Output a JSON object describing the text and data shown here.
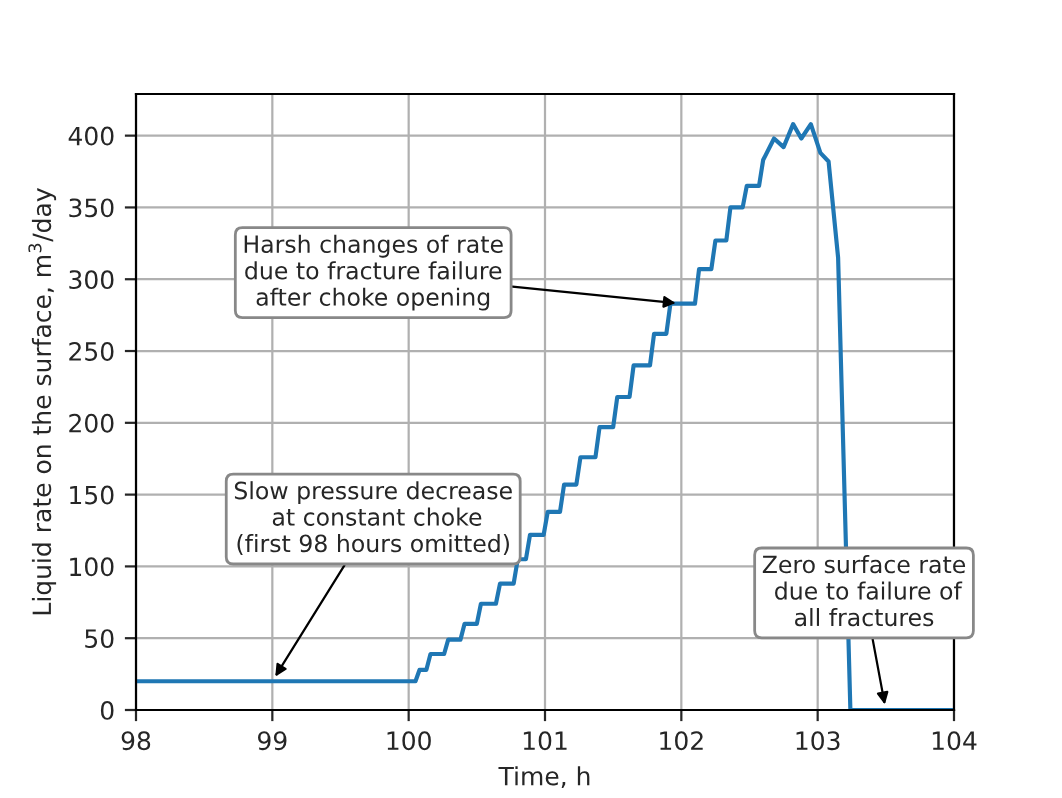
{
  "chart_data": {
    "type": "line",
    "xlabel": "Time, h",
    "ylabel": "Liquid rate on the surface, m$^{3}$/day",
    "x": [
      98,
      100.05,
      100.08,
      100.13,
      100.16,
      100.26,
      100.29,
      100.38,
      100.41,
      100.5,
      100.53,
      100.64,
      100.67,
      100.77,
      100.8,
      100.86,
      100.89,
      100.99,
      101.02,
      101.11,
      101.14,
      101.23,
      101.26,
      101.37,
      101.4,
      101.5,
      101.53,
      101.62,
      101.65,
      101.77,
      101.8,
      101.89,
      101.92,
      102.1,
      102.13,
      102.22,
      102.25,
      102.33,
      102.36,
      102.45,
      102.48,
      102.57,
      102.6,
      102.68,
      102.75,
      102.82,
      102.88,
      102.95,
      103.02,
      103.08,
      103.15,
      103.24,
      104
    ],
    "series": [
      {
        "color": "#1f77b4",
        "values": [
          20,
          20,
          28,
          28,
          39,
          39,
          49,
          49,
          60,
          60,
          74,
          74,
          88,
          88,
          105,
          105,
          122,
          122,
          138,
          138,
          157,
          157,
          176,
          176,
          197,
          197,
          218,
          218,
          240,
          240,
          262,
          262,
          283,
          283,
          307,
          307,
          327,
          327,
          350,
          350,
          365,
          365,
          383,
          398,
          392,
          408,
          398,
          408,
          388,
          382,
          315,
          0,
          0
        ]
      }
    ],
    "xlim": [
      98,
      104
    ],
    "xticks": [
      98,
      99,
      100,
      101,
      102,
      103,
      104
    ],
    "ylim": [
      0,
      429
    ],
    "yticks": [
      0,
      50,
      100,
      150,
      200,
      250,
      300,
      350,
      400
    ],
    "grid": true,
    "marker": "none",
    "line_style": "solid",
    "annotations": [
      {
        "text": "Harsh changes of rate\ndue to fracture failure\nafter choke opening",
        "x": 102,
        "y": 283
      },
      {
        "text": "Slow pressure decrease\n at constant choke\n(first 98 hours omitted)",
        "x": 99,
        "y": 20
      },
      {
        "text": "Zero surface rate\n due to failure of\nall fractures",
        "x": 103.5,
        "y": 0
      }
    ]
  }
}
